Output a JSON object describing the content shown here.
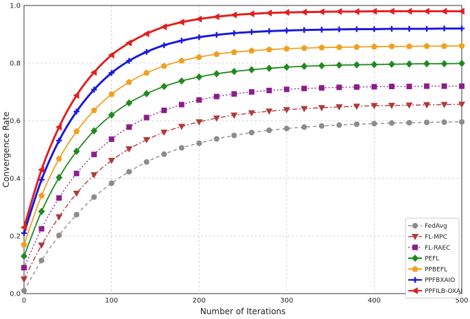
{
  "chart_data": {
    "type": "line",
    "xlabel": "Number of Iterations",
    "ylabel": "Convergence Rate",
    "xlim": [
      0,
      500
    ],
    "ylim": [
      0.0,
      1.0
    ],
    "xticks": [
      "0",
      "100",
      "200",
      "300",
      "400",
      "500"
    ],
    "yticks": [
      "0.0",
      "0.2",
      "0.4",
      "0.6",
      "0.8",
      "1.0"
    ],
    "grid": true,
    "legend_position": "bottom-right",
    "x": [
      0,
      20,
      40,
      60,
      80,
      100,
      120,
      140,
      160,
      180,
      200,
      220,
      240,
      260,
      280,
      300,
      320,
      340,
      360,
      380,
      400,
      420,
      440,
      460,
      480,
      500
    ],
    "series": [
      {
        "name": "FedAvg",
        "color": "#8c8c8c",
        "dash": "5,4",
        "marker": "circle",
        "values": [
          0.01,
          0.115,
          0.202,
          0.274,
          0.335,
          0.383,
          0.423,
          0.457,
          0.484,
          0.506,
          0.522,
          0.537,
          0.549,
          0.559,
          0.567,
          0.573,
          0.578,
          0.582,
          0.585,
          0.588,
          0.59,
          0.592,
          0.593,
          0.594,
          0.595,
          0.596
        ]
      },
      {
        "name": "FL-MPC",
        "color": "#b03a3a",
        "dash": "7,3,2,3",
        "marker": "triangle-down",
        "values": [
          0.05,
          0.168,
          0.266,
          0.348,
          0.412,
          0.462,
          0.502,
          0.534,
          0.56,
          0.58,
          0.596,
          0.609,
          0.619,
          0.627,
          0.633,
          0.638,
          0.642,
          0.645,
          0.648,
          0.65,
          0.652,
          0.653,
          0.654,
          0.655,
          0.656,
          0.657
        ]
      },
      {
        "name": "FL-RAEC",
        "color": "#8b1f8b",
        "dash": "2,3",
        "marker": "square",
        "values": [
          0.09,
          0.225,
          0.332,
          0.417,
          0.483,
          0.536,
          0.578,
          0.611,
          0.636,
          0.656,
          0.672,
          0.684,
          0.693,
          0.7,
          0.705,
          0.709,
          0.712,
          0.714,
          0.716,
          0.717,
          0.718,
          0.719,
          0.719,
          0.72,
          0.72,
          0.72
        ]
      },
      {
        "name": "PEFL",
        "color": "#1f8a1f",
        "dash": "",
        "marker": "diamond",
        "values": [
          0.13,
          0.285,
          0.403,
          0.494,
          0.565,
          0.62,
          0.662,
          0.694,
          0.719,
          0.738,
          0.752,
          0.763,
          0.771,
          0.777,
          0.782,
          0.786,
          0.789,
          0.791,
          0.793,
          0.794,
          0.795,
          0.796,
          0.797,
          0.798,
          0.798,
          0.799
        ]
      },
      {
        "name": "PPBEFL",
        "color": "#f0a020",
        "dash": "",
        "marker": "pentagon",
        "values": [
          0.17,
          0.34,
          0.468,
          0.563,
          0.636,
          0.692,
          0.734,
          0.766,
          0.79,
          0.808,
          0.821,
          0.831,
          0.838,
          0.843,
          0.847,
          0.85,
          0.852,
          0.854,
          0.855,
          0.856,
          0.857,
          0.858,
          0.858,
          0.859,
          0.859,
          0.86
        ]
      },
      {
        "name": "PPFBXAIO",
        "color": "#1a1adc",
        "dash": "",
        "marker": "plus",
        "values": [
          0.21,
          0.395,
          0.531,
          0.632,
          0.708,
          0.766,
          0.808,
          0.839,
          0.862,
          0.878,
          0.89,
          0.898,
          0.904,
          0.908,
          0.911,
          0.913,
          0.915,
          0.916,
          0.917,
          0.918,
          0.918,
          0.919,
          0.919,
          0.919,
          0.92,
          0.92
        ]
      },
      {
        "name": "PPFILB-OXAI",
        "color": "#e02020",
        "dash": "",
        "marker": "triangle-left",
        "values": [
          0.23,
          0.43,
          0.578,
          0.688,
          0.768,
          0.828,
          0.87,
          0.902,
          0.926,
          0.942,
          0.953,
          0.961,
          0.967,
          0.971,
          0.974,
          0.976,
          0.977,
          0.978,
          0.979,
          0.979,
          0.98,
          0.98,
          0.98,
          0.98,
          0.98,
          0.98
        ]
      }
    ]
  }
}
